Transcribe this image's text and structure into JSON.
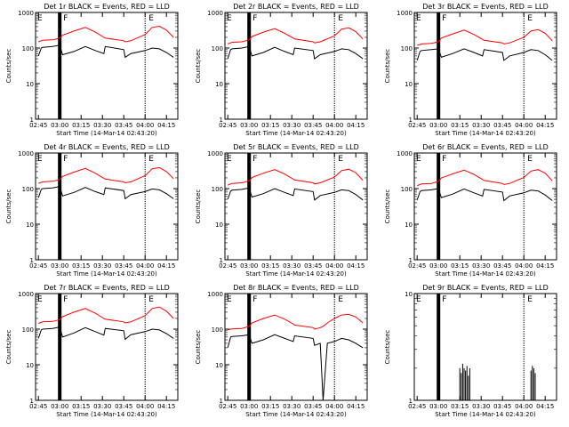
{
  "page": {
    "background": "#ffffff"
  },
  "colors": {
    "events": "#000000",
    "lld": "#ff0000",
    "axis": "#000000"
  },
  "chart_data": [
    {
      "type": "line",
      "title": "Det 1r BLACK = Events, RED = LLD",
      "xlabel": "Start Time (14-Mar-14 02:43:20)",
      "ylabel": "Counts/sec",
      "ylog": true,
      "ylim": [
        1,
        1000
      ],
      "yticks": [
        "1",
        "10",
        "100",
        "1000"
      ],
      "xticks": [
        "02:45",
        "03:00",
        "03:15",
        "03:30",
        "03:45",
        "04:00",
        "04:15"
      ],
      "flags": [
        "E",
        "F",
        "E"
      ],
      "series": [
        {
          "name": "BLACK = Events",
          "color": "#000000",
          "x": [
            "02:45",
            "02:47",
            "02:48",
            "02:55",
            "03:00",
            "03:02",
            "03:10",
            "03:18",
            "03:25",
            "03:31",
            "03:32",
            "03:45",
            "03:46",
            "03:50",
            "04:00",
            "04:05",
            "04:10",
            "04:15",
            "04:20"
          ],
          "values": [
            60,
            100,
            105,
            110,
            120,
            65,
            80,
            110,
            85,
            70,
            110,
            90,
            55,
            70,
            85,
            100,
            95,
            75,
            55
          ]
        },
        {
          "name": "RED = LLD",
          "color": "#ff0000",
          "x": [
            "02:45",
            "02:47",
            "02:48",
            "02:55",
            "03:00",
            "03:02",
            "03:10",
            "03:18",
            "03:25",
            "03:31",
            "03:32",
            "03:45",
            "03:46",
            "03:50",
            "04:00",
            "04:05",
            "04:10",
            "04:15",
            "04:20"
          ],
          "values": [
            150,
            160,
            165,
            170,
            190,
            230,
            300,
            380,
            280,
            200,
            190,
            160,
            150,
            160,
            240,
            380,
            410,
            320,
            200
          ]
        }
      ]
    },
    {
      "type": "line",
      "title": "Det 2r BLACK = Events, RED = LLD",
      "xlabel": "Start Time (14-Mar-14 02:43:20)",
      "ylabel": "Counts/sec",
      "ylog": true,
      "ylim": [
        1,
        1000
      ],
      "yticks": [
        "1",
        "10",
        "100",
        "1000"
      ],
      "xticks": [
        "02:45",
        "03:00",
        "03:15",
        "03:30",
        "03:45",
        "04:00",
        "04:15"
      ],
      "flags": [
        "E",
        "F",
        "E"
      ],
      "series": [
        {
          "name": "BLACK = Events",
          "color": "#000000",
          "x": [
            "02:45",
            "02:47",
            "02:48",
            "02:55",
            "03:00",
            "03:02",
            "03:10",
            "03:18",
            "03:25",
            "03:31",
            "03:32",
            "03:45",
            "03:46",
            "03:50",
            "04:00",
            "04:05",
            "04:10",
            "04:15",
            "04:20"
          ],
          "values": [
            50,
            90,
            95,
            100,
            110,
            60,
            75,
            105,
            80,
            65,
            100,
            85,
            50,
            65,
            80,
            95,
            90,
            70,
            50
          ]
        },
        {
          "name": "RED = LLD",
          "color": "#ff0000",
          "x": [
            "02:45",
            "02:47",
            "02:48",
            "02:55",
            "03:00",
            "03:02",
            "03:10",
            "03:18",
            "03:25",
            "03:31",
            "03:32",
            "03:45",
            "03:46",
            "03:50",
            "04:00",
            "04:05",
            "04:10",
            "04:15",
            "04:20"
          ],
          "values": [
            130,
            140,
            145,
            150,
            170,
            210,
            280,
            350,
            260,
            190,
            180,
            150,
            140,
            150,
            220,
            340,
            370,
            290,
            180
          ]
        }
      ]
    },
    {
      "type": "line",
      "title": "Det 3r BLACK = Events, RED = LLD",
      "xlabel": "Start Time (14-Mar-14 02:43:20)",
      "ylabel": "Counts/sec",
      "ylog": true,
      "ylim": [
        1,
        1000
      ],
      "yticks": [
        "1",
        "10",
        "100",
        "1000"
      ],
      "xticks": [
        "02:45",
        "03:00",
        "03:15",
        "03:30",
        "03:45",
        "04:00",
        "04:15"
      ],
      "flags": [
        "E",
        "F",
        "E"
      ],
      "series": [
        {
          "name": "BLACK = Events",
          "color": "#000000",
          "x": [
            "02:45",
            "02:47",
            "02:48",
            "02:55",
            "03:00",
            "03:02",
            "03:10",
            "03:18",
            "03:25",
            "03:31",
            "03:32",
            "03:45",
            "03:46",
            "03:50",
            "04:00",
            "04:05",
            "04:10",
            "04:15",
            "04:20"
          ],
          "values": [
            45,
            80,
            85,
            90,
            95,
            55,
            70,
            95,
            75,
            60,
            90,
            75,
            45,
            60,
            75,
            90,
            85,
            65,
            45
          ]
        },
        {
          "name": "RED = LLD",
          "color": "#ff0000",
          "x": [
            "02:45",
            "02:47",
            "02:48",
            "02:55",
            "03:00",
            "03:02",
            "03:10",
            "03:18",
            "03:25",
            "03:31",
            "03:32",
            "03:45",
            "03:46",
            "03:50",
            "04:00",
            "04:05",
            "04:10",
            "04:15",
            "04:20"
          ],
          "values": [
            120,
            125,
            130,
            135,
            150,
            190,
            250,
            320,
            240,
            175,
            165,
            140,
            130,
            140,
            200,
            300,
            330,
            260,
            160
          ]
        }
      ]
    },
    {
      "type": "line",
      "title": "Det 4r BLACK = Events, RED = LLD",
      "xlabel": "Start Time (14-Mar-14 02:43:20)",
      "ylabel": "Counts/sec",
      "ylog": true,
      "ylim": [
        1,
        1000
      ],
      "yticks": [
        "1",
        "10",
        "100",
        "1000"
      ],
      "xticks": [
        "02:45",
        "03:00",
        "03:15",
        "03:30",
        "03:45",
        "04:00",
        "04:15"
      ],
      "flags": [
        "E",
        "F",
        "E"
      ],
      "series": [
        {
          "name": "BLACK = Events",
          "color": "#000000",
          "x": [
            "02:45",
            "02:47",
            "02:48",
            "02:55",
            "03:00",
            "03:02",
            "03:10",
            "03:18",
            "03:25",
            "03:31",
            "03:32",
            "03:45",
            "03:46",
            "03:50",
            "04:00",
            "04:05",
            "04:10",
            "04:15",
            "04:20"
          ],
          "values": [
            55,
            95,
            100,
            105,
            115,
            62,
            78,
            108,
            82,
            68,
            105,
            88,
            52,
            68,
            82,
            98,
            92,
            72,
            52
          ]
        },
        {
          "name": "RED = LLD",
          "color": "#ff0000",
          "x": [
            "02:45",
            "02:47",
            "02:48",
            "02:55",
            "03:00",
            "03:02",
            "03:10",
            "03:18",
            "03:25",
            "03:31",
            "03:32",
            "03:45",
            "03:46",
            "03:50",
            "04:00",
            "04:05",
            "04:10",
            "04:15",
            "04:20"
          ],
          "values": [
            140,
            150,
            155,
            160,
            180,
            220,
            290,
            370,
            270,
            195,
            185,
            155,
            145,
            155,
            230,
            360,
            390,
            300,
            190
          ]
        }
      ]
    },
    {
      "type": "line",
      "title": "Det 5r BLACK = Events, RED = LLD",
      "xlabel": "Start Time (14-Mar-14 02:43:20)",
      "ylabel": "Counts/sec",
      "ylog": true,
      "ylim": [
        1,
        1000
      ],
      "yticks": [
        "1",
        "10",
        "100",
        "1000"
      ],
      "xticks": [
        "02:45",
        "03:00",
        "03:15",
        "03:30",
        "03:45",
        "04:00",
        "04:15"
      ],
      "flags": [
        "E",
        "F",
        "E"
      ],
      "series": [
        {
          "name": "BLACK = Events",
          "color": "#000000",
          "x": [
            "02:45",
            "02:47",
            "02:48",
            "02:55",
            "03:00",
            "03:02",
            "03:10",
            "03:18",
            "03:25",
            "03:31",
            "03:32",
            "03:45",
            "03:46",
            "03:50",
            "04:00",
            "04:05",
            "04:10",
            "04:15",
            "04:20"
          ],
          "values": [
            50,
            85,
            90,
            95,
            105,
            58,
            72,
            100,
            78,
            64,
            98,
            82,
            48,
            64,
            78,
            92,
            88,
            68,
            48
          ]
        },
        {
          "name": "RED = LLD",
          "color": "#ff0000",
          "x": [
            "02:45",
            "02:47",
            "02:48",
            "02:55",
            "03:00",
            "03:02",
            "03:10",
            "03:18",
            "03:25",
            "03:31",
            "03:32",
            "03:45",
            "03:46",
            "03:50",
            "04:00",
            "04:05",
            "04:10",
            "04:15",
            "04:20"
          ],
          "values": [
            125,
            135,
            140,
            145,
            165,
            205,
            270,
            340,
            255,
            185,
            175,
            145,
            135,
            145,
            210,
            320,
            350,
            280,
            170
          ]
        }
      ]
    },
    {
      "type": "line",
      "title": "Det 6r BLACK = Events, RED = LLD",
      "xlabel": "Start Time (14-Mar-14 02:43:20)",
      "ylabel": "Counts/sec",
      "ylog": true,
      "ylim": [
        1,
        1000
      ],
      "yticks": [
        "1",
        "10",
        "100",
        "1000"
      ],
      "xticks": [
        "02:45",
        "03:00",
        "03:15",
        "03:30",
        "03:45",
        "04:00",
        "04:15"
      ],
      "flags": [
        "E",
        "F",
        "E"
      ],
      "series": [
        {
          "name": "BLACK = Events",
          "color": "#000000",
          "x": [
            "02:45",
            "02:47",
            "02:48",
            "02:55",
            "03:00",
            "03:02",
            "03:10",
            "03:18",
            "03:25",
            "03:31",
            "03:32",
            "03:45",
            "03:46",
            "03:50",
            "04:00",
            "04:05",
            "04:10",
            "04:15",
            "04:20"
          ],
          "values": [
            48,
            82,
            88,
            92,
            100,
            56,
            70,
            98,
            76,
            62,
            95,
            80,
            46,
            62,
            76,
            90,
            86,
            66,
            46
          ]
        },
        {
          "name": "RED = LLD",
          "color": "#ff0000",
          "x": [
            "02:45",
            "02:47",
            "02:48",
            "02:55",
            "03:00",
            "03:02",
            "03:10",
            "03:18",
            "03:25",
            "03:31",
            "03:32",
            "03:45",
            "03:46",
            "03:50",
            "04:00",
            "04:05",
            "04:10",
            "04:15",
            "04:20"
          ],
          "values": [
            120,
            130,
            135,
            140,
            160,
            200,
            260,
            330,
            250,
            180,
            170,
            140,
            130,
            140,
            205,
            310,
            340,
            270,
            165
          ]
        }
      ]
    },
    {
      "type": "line",
      "title": "Det 7r BLACK = Events, RED = LLD",
      "xlabel": "Start Time (14-Mar-14 02:43:20)",
      "ylabel": "Counts/sec",
      "ylog": true,
      "ylim": [
        1,
        1000
      ],
      "yticks": [
        "1",
        "10",
        "100",
        "1000"
      ],
      "xticks": [
        "02:45",
        "03:00",
        "03:15",
        "03:30",
        "03:45",
        "04:00",
        "04:15"
      ],
      "flags": [
        "E",
        "F",
        "E"
      ],
      "series": [
        {
          "name": "BLACK = Events",
          "color": "#000000",
          "x": [
            "02:45",
            "02:47",
            "02:48",
            "02:55",
            "03:00",
            "03:02",
            "03:10",
            "03:18",
            "03:25",
            "03:31",
            "03:32",
            "03:45",
            "03:46",
            "03:50",
            "04:00",
            "04:05",
            "04:10",
            "04:15",
            "04:20"
          ],
          "values": [
            55,
            95,
            100,
            105,
            115,
            60,
            78,
            110,
            85,
            68,
            105,
            90,
            52,
            70,
            85,
            100,
            95,
            75,
            55
          ]
        },
        {
          "name": "RED = LLD",
          "color": "#ff0000",
          "x": [
            "02:45",
            "02:47",
            "02:48",
            "02:55",
            "03:00",
            "03:02",
            "03:10",
            "03:18",
            "03:25",
            "03:31",
            "03:32",
            "03:45",
            "03:46",
            "03:50",
            "04:00",
            "04:05",
            "04:10",
            "04:15",
            "04:20"
          ],
          "values": [
            145,
            155,
            160,
            165,
            185,
            225,
            300,
            380,
            280,
            200,
            190,
            160,
            150,
            160,
            240,
            380,
            420,
            320,
            200
          ]
        }
      ]
    },
    {
      "type": "line",
      "title": "Det 8r BLACK = Events, RED = LLD",
      "xlabel": "Start Time (14-Mar-14 02:43:20)",
      "ylabel": "Counts/sec",
      "ylog": true,
      "ylim": [
        1,
        1000
      ],
      "yticks": [
        "1",
        "10",
        "100",
        "1000"
      ],
      "xticks": [
        "02:45",
        "03:00",
        "03:15",
        "03:30",
        "03:45",
        "04:00",
        "04:15"
      ],
      "flags": [
        "E",
        "F",
        "E"
      ],
      "series": [
        {
          "name": "BLACK = Events",
          "color": "#000000",
          "x": [
            "02:45",
            "02:47",
            "02:48",
            "02:55",
            "03:00",
            "03:02",
            "03:10",
            "03:18",
            "03:25",
            "03:31",
            "03:32",
            "03:45",
            "03:46",
            "03:50",
            "03:52",
            "03:55",
            "04:00",
            "04:05",
            "04:10",
            "04:15",
            "04:20"
          ],
          "values": [
            30,
            60,
            62,
            65,
            70,
            40,
            50,
            70,
            55,
            45,
            65,
            55,
            35,
            40,
            1,
            40,
            45,
            55,
            50,
            40,
            30
          ]
        },
        {
          "name": "RED = LLD",
          "color": "#ff0000",
          "x": [
            "02:45",
            "02:47",
            "02:48",
            "02:55",
            "03:00",
            "03:02",
            "03:10",
            "03:18",
            "03:25",
            "03:31",
            "03:32",
            "03:45",
            "03:46",
            "03:50",
            "03:52",
            "03:55",
            "04:00",
            "04:05",
            "04:10",
            "04:15",
            "04:20"
          ],
          "values": [
            95,
            100,
            102,
            105,
            120,
            150,
            200,
            250,
            190,
            140,
            130,
            110,
            100,
            110,
            120,
            150,
            200,
            250,
            260,
            220,
            150
          ]
        }
      ]
    },
    {
      "type": "line",
      "title": "Det 9r BLACK = Events, RED = LLD",
      "xlabel": "Start Time (14-Mar-14 02:43:20)",
      "ylabel": "Counts/sec",
      "ylog": true,
      "ylim": [
        1,
        10
      ],
      "yticks": [
        "1",
        "10"
      ],
      "xticks": [
        "02:45",
        "03:00",
        "03:15",
        "03:30",
        "03:45",
        "04:00",
        "04:15"
      ],
      "flags": [
        "E",
        "F",
        "E"
      ],
      "series": [
        {
          "name": "BLACK = Events",
          "color": "#000000",
          "x": [
            "03:15",
            "03:16",
            "03:17",
            "03:18",
            "03:19",
            "03:20",
            "03:21",
            "03:22",
            "04:05",
            "04:06",
            "04:07",
            "04:08"
          ],
          "values": [
            2,
            1.8,
            2.2,
            2,
            1.9,
            2.1,
            1.7,
            2,
            1.9,
            2.1,
            2,
            1.8
          ]
        }
      ]
    }
  ]
}
